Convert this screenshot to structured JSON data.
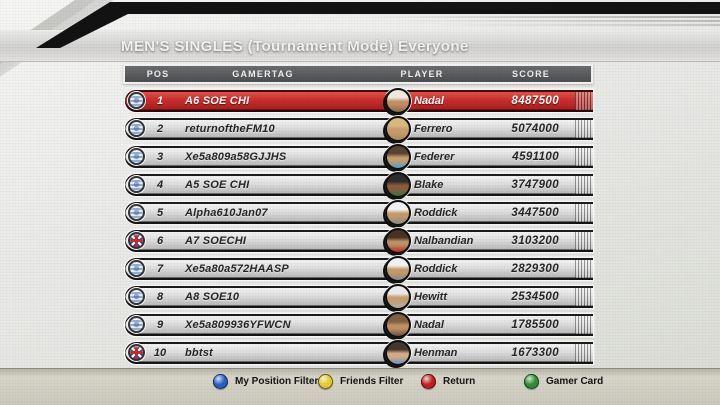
{
  "title": "MEN'S SINGLES (Tournament Mode) Everyone",
  "table": {
    "headers": [
      "POS",
      "GAMERTAG",
      "PLAYER",
      "SCORE"
    ],
    "rows": [
      {
        "pos": "1",
        "gamertag": "A6 SOE CHI",
        "player": "Nadal",
        "score": "8487500",
        "flag": "stripes",
        "highlight": true,
        "avatar": {
          "top": "#efe9dc",
          "mid": "#bd8f63",
          "bottom": "#8a6a48"
        }
      },
      {
        "pos": "2",
        "gamertag": "returnoftheFM10",
        "player": "Ferrero",
        "score": "5074000",
        "flag": "stripes",
        "highlight": false,
        "avatar": {
          "top": "#d8b87c",
          "mid": "#c59a6c",
          "bottom": "#a88a5a"
        }
      },
      {
        "pos": "3",
        "gamertag": "Xe5a809a58GJJHS",
        "player": "Federer",
        "score": "4591100",
        "flag": "stripes",
        "highlight": false,
        "avatar": {
          "top": "#574330",
          "mid": "#c59a6c",
          "bottom": "#4d9fd4"
        }
      },
      {
        "pos": "4",
        "gamertag": "A5 SOE CHI",
        "player": "Blake",
        "score": "3747900",
        "flag": "stripes",
        "highlight": false,
        "avatar": {
          "top": "#2e2c28",
          "mid": "#8a5c38",
          "bottom": "#3f6f46"
        }
      },
      {
        "pos": "5",
        "gamertag": "Alpha610Jan07",
        "player": "Roddick",
        "score": "3447500",
        "flag": "stripes",
        "highlight": false,
        "avatar": {
          "top": "#eff0f2",
          "mid": "#c39868",
          "bottom": "#8a8a8a"
        }
      },
      {
        "pos": "6",
        "gamertag": "A7 SOECHI",
        "player": "Nalbandian",
        "score": "3103200",
        "flag": "uk",
        "highlight": false,
        "avatar": {
          "top": "#463225",
          "mid": "#bd8f63",
          "bottom": "#b63028"
        }
      },
      {
        "pos": "7",
        "gamertag": "Xe5a80a572HAASP",
        "player": "Roddick",
        "score": "2829300",
        "flag": "stripes",
        "highlight": false,
        "avatar": {
          "top": "#eff0f2",
          "mid": "#c39868",
          "bottom": "#8a8a8a"
        }
      },
      {
        "pos": "8",
        "gamertag": "A8 SOE10",
        "player": "Hewitt",
        "score": "2534500",
        "flag": "stripes",
        "highlight": false,
        "avatar": {
          "top": "#e9e9e9",
          "mid": "#c59c6e",
          "bottom": "#b0b0b0"
        }
      },
      {
        "pos": "9",
        "gamertag": "Xe5a809936YFWCN",
        "player": "Nadal",
        "score": "1785500",
        "flag": "stripes",
        "highlight": false,
        "avatar": {
          "top": "#7e5f41",
          "mid": "#bd8f63",
          "bottom": "#6a503a"
        }
      },
      {
        "pos": "10",
        "gamertag": "bbtst",
        "player": "Henman",
        "score": "1673300",
        "flag": "uk",
        "highlight": false,
        "avatar": {
          "top": "#42372c",
          "mid": "#d4ab85",
          "bottom": "#6f8fc0"
        }
      }
    ]
  },
  "footer": {
    "buttons": [
      {
        "label": "My Position Filter",
        "color": "#2860c8",
        "icon": "blue-controller-button-icon"
      },
      {
        "label": "Friends Filter",
        "color": "#e8cb2e",
        "icon": "yellow-controller-button-icon"
      },
      {
        "label": "Return",
        "color": "#c41e23",
        "icon": "red-controller-button-icon"
      },
      {
        "label": "Gamer Card",
        "color": "#2f8f35",
        "icon": "green-controller-button-icon"
      }
    ]
  },
  "colors": {
    "highlight_row": "#c62f2f",
    "header_bar": "#545658",
    "footer_bar": "#cfccc0"
  }
}
